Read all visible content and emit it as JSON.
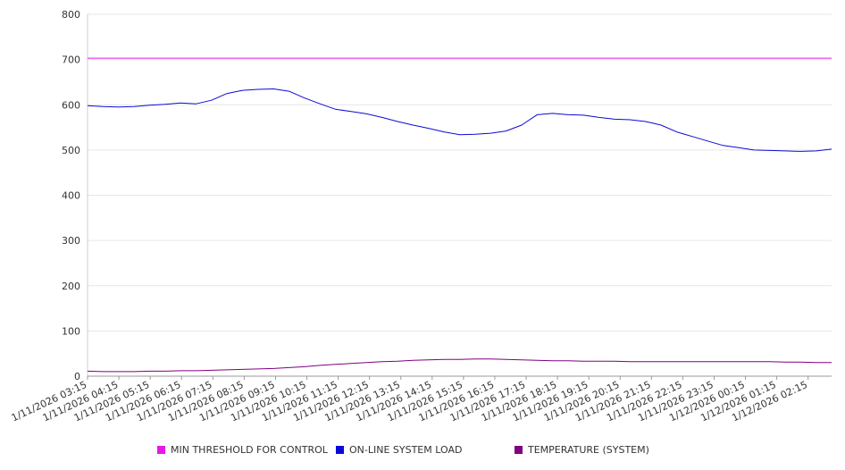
{
  "chart_data": {
    "type": "line",
    "title": "",
    "xlabel": "",
    "ylabel": "",
    "ylim": [
      0,
      800
    ],
    "yticks": [
      0,
      100,
      200,
      300,
      400,
      500,
      600,
      700,
      800
    ],
    "grid": true,
    "legend_position": "bottom",
    "x_tick_labels": [
      "1/11/2026 03:15",
      "1/11/2026 04:15",
      "1/11/2026 05:15",
      "1/11/2026 06:15",
      "1/11/2026 07:15",
      "1/11/2026 08:15",
      "1/11/2026 09:15",
      "1/11/2026 10:15",
      "1/11/2026 11:15",
      "1/11/2026 12:15",
      "1/11/2026 13:15",
      "1/11/2026 14:15",
      "1/11/2026 15:15",
      "1/11/2026 16:15",
      "1/11/2026 17:15",
      "1/11/2026 18:15",
      "1/11/2026 19:15",
      "1/11/2026 20:15",
      "1/11/2026 21:15",
      "1/11/2026 22:15",
      "1/11/2026 23:15",
      "1/12/2026 00:15",
      "1/12/2026 01:15",
      "1/12/2026 02:15"
    ],
    "x": [
      "03:15",
      "03:45",
      "04:15",
      "04:45",
      "05:15",
      "05:45",
      "06:15",
      "06:45",
      "07:15",
      "07:45",
      "08:15",
      "08:45",
      "09:15",
      "09:45",
      "10:15",
      "10:45",
      "11:15",
      "11:45",
      "12:15",
      "12:45",
      "13:15",
      "13:45",
      "14:15",
      "14:45",
      "15:15",
      "15:45",
      "16:15",
      "16:45",
      "17:15",
      "17:45",
      "18:15",
      "18:45",
      "19:15",
      "19:45",
      "20:15",
      "20:45",
      "21:15",
      "21:45",
      "22:15",
      "22:45",
      "23:15",
      "23:45",
      "00:15",
      "00:45",
      "01:15",
      "01:45",
      "02:15",
      "02:45",
      "03:00"
    ],
    "series": [
      {
        "name": "MIN THRESHOLD FOR CONTROL",
        "color": "#e619e6",
        "values": [
          703,
          703,
          703,
          703,
          703,
          703,
          703,
          703,
          703,
          703,
          703,
          703,
          703,
          703,
          703,
          703,
          703,
          703,
          703,
          703,
          703,
          703,
          703,
          703,
          703,
          703,
          703,
          703,
          703,
          703,
          703,
          703,
          703,
          703,
          703,
          703,
          703,
          703,
          703,
          703,
          703,
          703,
          703,
          703,
          703,
          703,
          703,
          703,
          703
        ]
      },
      {
        "name": "ON-LINE SYSTEM LOAD",
        "color": "#0a0ad6",
        "values": [
          598,
          596,
          595,
          596,
          599,
          601,
          604,
          602,
          610,
          625,
          632,
          634,
          635,
          630,
          615,
          602,
          590,
          585,
          580,
          572,
          563,
          555,
          548,
          540,
          534,
          535,
          537,
          542,
          555,
          578,
          581,
          578,
          577,
          572,
          568,
          567,
          563,
          555,
          540,
          530,
          520,
          510,
          505,
          500,
          499,
          498,
          497,
          498,
          502
        ]
      },
      {
        "name": "TEMPERATURE (SYSTEM)",
        "color": "#800080",
        "values": [
          11,
          10,
          10,
          10,
          11,
          11,
          12,
          12,
          13,
          14,
          15,
          16,
          17,
          19,
          21,
          24,
          26,
          28,
          30,
          32,
          33,
          35,
          36,
          37,
          37,
          38,
          38,
          37,
          36,
          35,
          34,
          34,
          33,
          33,
          33,
          32,
          32,
          32,
          32,
          32,
          32,
          32,
          32,
          32,
          32,
          31,
          31,
          30,
          30
        ]
      }
    ]
  }
}
